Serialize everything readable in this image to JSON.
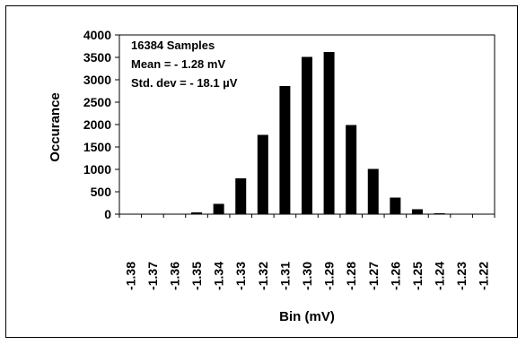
{
  "chart_data": {
    "type": "bar",
    "categories": [
      "-1.38",
      "-1.37",
      "-1.36",
      "-1.35",
      "-1.34",
      "-1.33",
      "-1.32",
      "-1.31",
      "-1.30",
      "-1.29",
      "-1.28",
      "-1.27",
      "-1.26",
      "-1.25",
      "-1.24",
      "-1.23",
      "-1.22"
    ],
    "values": [
      0,
      2,
      5,
      40,
      230,
      800,
      1770,
      2860,
      3510,
      3620,
      1990,
      1010,
      370,
      110,
      20,
      5,
      0
    ],
    "xlabel": "Bin (mV)",
    "ylabel": "Occurance",
    "ylim": [
      0,
      4000
    ],
    "yticks": [
      0,
      500,
      1000,
      1500,
      2000,
      2500,
      3000,
      3500,
      4000
    ],
    "grid": false,
    "legend": "none",
    "bar_color": "#000000",
    "annotations": [
      "16384 Samples",
      "Mean = - 1.28 mV",
      "Std. dev = - 18.1 µV"
    ]
  }
}
